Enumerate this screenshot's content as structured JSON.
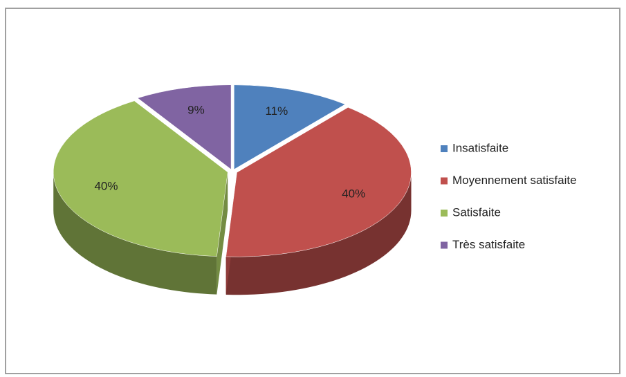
{
  "chart_data": {
    "type": "pie",
    "pie_3d": true,
    "categories": [
      "Insatisfaite",
      "Moyennement satisfaite",
      "Satisfaite",
      "Très satisfaite"
    ],
    "values": [
      11,
      40,
      40,
      9
    ],
    "colors": [
      "#4f81bd",
      "#c0504d",
      "#9bbb59",
      "#8064a2"
    ],
    "legend": "right"
  }
}
